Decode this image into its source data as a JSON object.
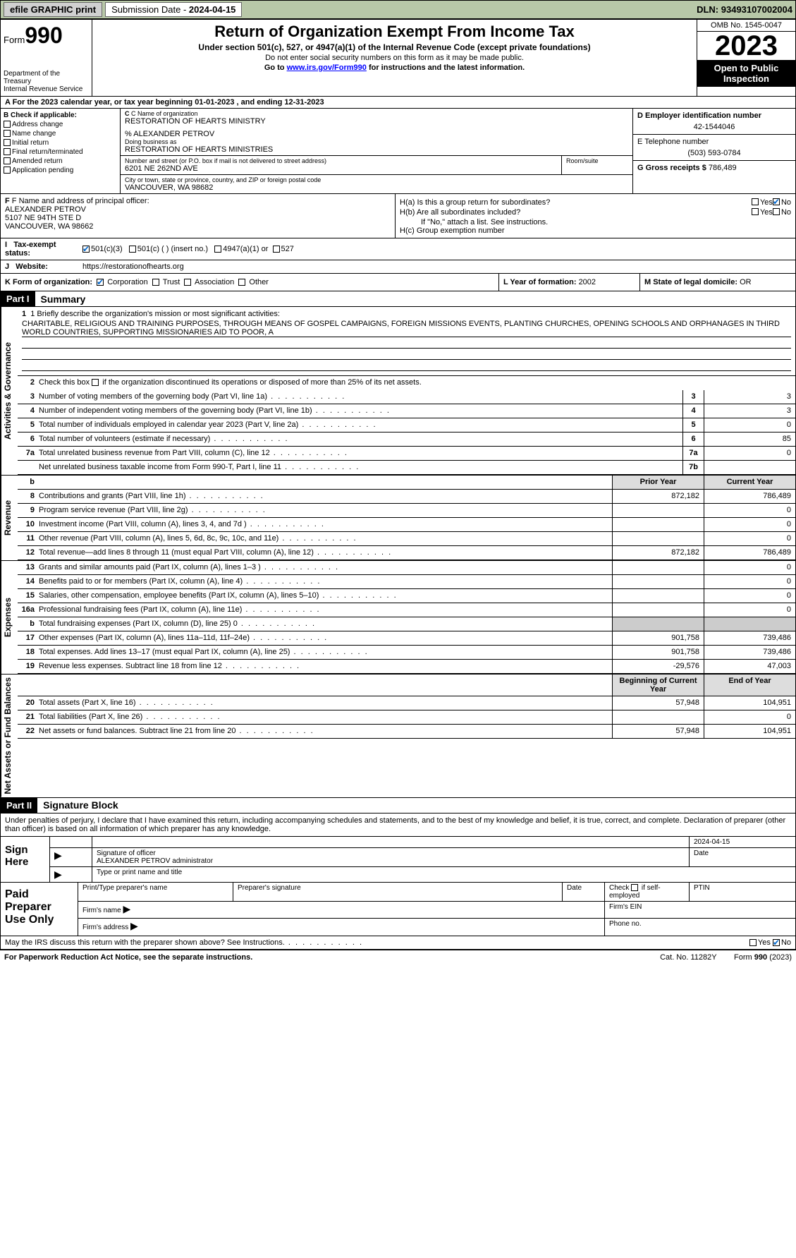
{
  "topbar": {
    "efile": "efile GRAPHIC print",
    "submission_label": "Submission Date - ",
    "submission_date": "2024-04-15",
    "dln_label": "DLN: ",
    "dln": "93493107002004"
  },
  "header": {
    "form_prefix": "Form",
    "form_number": "990",
    "dept": "Department of the Treasury\nInternal Revenue Service",
    "title": "Return of Organization Exempt From Income Tax",
    "sub1": "Under section 501(c), 527, or 4947(a)(1) of the Internal Revenue Code (except private foundations)",
    "sub2": "Do not enter social security numbers on this form as it may be made public.",
    "sub3_pre": "Go to ",
    "sub3_link": "www.irs.gov/Form990",
    "sub3_post": " for instructions and the latest information.",
    "omb": "OMB No. 1545-0047",
    "year": "2023",
    "open": "Open to Public Inspection"
  },
  "row_a": "A For the 2023 calendar year, or tax year beginning 01-01-2023   , and ending 12-31-2023",
  "col_b": {
    "title": "B Check if applicable:",
    "opts": [
      "Address change",
      "Name change",
      "Initial return",
      "Final return/terminated",
      "Amended return",
      "Application pending"
    ]
  },
  "col_c": {
    "name_lbl": "C Name of organization",
    "name": "RESTORATION OF HEARTS MINISTRY",
    "care_of": "% ALEXANDER PETROV",
    "dba_lbl": "Doing business as",
    "dba": "RESTORATION OF HEARTS MINISTRIES",
    "street_lbl": "Number and street (or P.O. box if mail is not delivered to street address)",
    "street": "6201 NE 262ND AVE",
    "suite_lbl": "Room/suite",
    "city_lbl": "City or town, state or province, country, and ZIP or foreign postal code",
    "city": "VANCOUVER, WA  98682"
  },
  "col_d": {
    "lbl": "D Employer identification number",
    "val": "42-1544046"
  },
  "col_e": {
    "lbl": "E Telephone number",
    "val": "(503) 593-0784"
  },
  "col_g": {
    "lbl": "G Gross receipts $ ",
    "val": "786,489"
  },
  "col_f": {
    "lbl": "F Name and address of principal officer:",
    "name": "ALEXANDER PETROV",
    "addr1": "5107 NE 94TH STE D",
    "addr2": "VANCOUVER, WA  98662"
  },
  "col_h": {
    "ha": "H(a)  Is this a group return for subordinates?",
    "hb": "H(b)  Are all subordinates included?",
    "hb2": "If \"No,\" attach a list. See instructions.",
    "hc": "H(c)  Group exemption number ",
    "yes": "Yes",
    "no": "No"
  },
  "row_i": {
    "lbl": "Tax-exempt status:",
    "o1": "501(c)(3)",
    "o2": "501(c) (  ) (insert no.)",
    "o3": "4947(a)(1) or",
    "o4": "527"
  },
  "row_j": {
    "lbl": "Website:",
    "val": "https://restorationofhearts.org"
  },
  "row_k": {
    "lbl": "K Form of organization:",
    "o1": "Corporation",
    "o2": "Trust",
    "o3": "Association",
    "o4": "Other"
  },
  "row_l": {
    "lbl": "L Year of formation: ",
    "val": "2002"
  },
  "row_m": {
    "lbl": "M State of legal domicile: ",
    "val": "OR"
  },
  "part1": {
    "hdr": "Part I",
    "title": "Summary"
  },
  "mission": {
    "lbl": "1  Briefly describe the organization's mission or most significant activities:",
    "txt": "CHARITABLE, RELIGIOUS AND TRAINING PURPOSES, THROUGH MEANS OF GOSPEL CAMPAIGNS, FOREIGN MISSIONS EVENTS, PLANTING CHURCHES, OPENING SCHOOLS AND ORPHANAGES IN THIRD WORLD COUNTRIES, SUPPORTING MISSIONARIES AID TO POOR, A"
  },
  "line2": "Check this box       if the organization discontinued its operations or disposed of more than 25% of its net assets.",
  "gov_lines": [
    {
      "n": "3",
      "t": "Number of voting members of the governing body (Part VI, line 1a)",
      "box": "3",
      "v": "3"
    },
    {
      "n": "4",
      "t": "Number of independent voting members of the governing body (Part VI, line 1b)",
      "box": "4",
      "v": "3"
    },
    {
      "n": "5",
      "t": "Total number of individuals employed in calendar year 2023 (Part V, line 2a)",
      "box": "5",
      "v": "0"
    },
    {
      "n": "6",
      "t": "Total number of volunteers (estimate if necessary)",
      "box": "6",
      "v": "85"
    },
    {
      "n": "7a",
      "t": "Total unrelated business revenue from Part VIII, column (C), line 12",
      "box": "7a",
      "v": "0"
    },
    {
      "n": "",
      "t": "Net unrelated business taxable income from Form 990-T, Part I, line 11",
      "box": "7b",
      "v": ""
    }
  ],
  "rev_hdr": {
    "b": "b",
    "py": "Prior Year",
    "cy": "Current Year"
  },
  "rev_lines": [
    {
      "n": "8",
      "t": "Contributions and grants (Part VIII, line 1h)",
      "py": "872,182",
      "cy": "786,489"
    },
    {
      "n": "9",
      "t": "Program service revenue (Part VIII, line 2g)",
      "py": "",
      "cy": "0"
    },
    {
      "n": "10",
      "t": "Investment income (Part VIII, column (A), lines 3, 4, and 7d )",
      "py": "",
      "cy": "0"
    },
    {
      "n": "11",
      "t": "Other revenue (Part VIII, column (A), lines 5, 6d, 8c, 9c, 10c, and 11e)",
      "py": "",
      "cy": "0"
    },
    {
      "n": "12",
      "t": "Total revenue—add lines 8 through 11 (must equal Part VIII, column (A), line 12)",
      "py": "872,182",
      "cy": "786,489"
    }
  ],
  "exp_lines": [
    {
      "n": "13",
      "t": "Grants and similar amounts paid (Part IX, column (A), lines 1–3 )",
      "py": "",
      "cy": "0"
    },
    {
      "n": "14",
      "t": "Benefits paid to or for members (Part IX, column (A), line 4)",
      "py": "",
      "cy": "0"
    },
    {
      "n": "15",
      "t": "Salaries, other compensation, employee benefits (Part IX, column (A), lines 5–10)",
      "py": "",
      "cy": "0"
    },
    {
      "n": "16a",
      "t": "Professional fundraising fees (Part IX, column (A), line 11e)",
      "py": "",
      "cy": "0"
    },
    {
      "n": "b",
      "t": "Total fundraising expenses (Part IX, column (D), line 25) 0",
      "py": "shade",
      "cy": "shade"
    },
    {
      "n": "17",
      "t": "Other expenses (Part IX, column (A), lines 11a–11d, 11f–24e)",
      "py": "901,758",
      "cy": "739,486"
    },
    {
      "n": "18",
      "t": "Total expenses. Add lines 13–17 (must equal Part IX, column (A), line 25)",
      "py": "901,758",
      "cy": "739,486"
    },
    {
      "n": "19",
      "t": "Revenue less expenses. Subtract line 18 from line 12",
      "py": "-29,576",
      "cy": "47,003"
    }
  ],
  "net_hdr": {
    "py": "Beginning of Current Year",
    "cy": "End of Year"
  },
  "net_lines": [
    {
      "n": "20",
      "t": "Total assets (Part X, line 16)",
      "py": "57,948",
      "cy": "104,951"
    },
    {
      "n": "21",
      "t": "Total liabilities (Part X, line 26)",
      "py": "",
      "cy": "0"
    },
    {
      "n": "22",
      "t": "Net assets or fund balances. Subtract line 21 from line 20",
      "py": "57,948",
      "cy": "104,951"
    }
  ],
  "vtabs": {
    "gov": "Activities & Governance",
    "rev": "Revenue",
    "exp": "Expenses",
    "net": "Net Assets or Fund Balances"
  },
  "part2": {
    "hdr": "Part II",
    "title": "Signature Block"
  },
  "sig_intro": "Under penalties of perjury, I declare that I have examined this return, including accompanying schedules and statements, and to the best of my knowledge and belief, it is true, correct, and complete. Declaration of preparer (other than officer) is based on all information of which preparer has any knowledge.",
  "sign": {
    "here": "Sign Here",
    "date": "2024-04-15",
    "sig_lbl": "Signature of officer",
    "date_lbl": "Date",
    "name": "ALEXANDER PETROV administrator",
    "type_lbl": "Type or print name and title"
  },
  "prep": {
    "title": "Paid Preparer Use Only",
    "h1": "Print/Type preparer's name",
    "h2": "Preparer's signature",
    "h3": "Date",
    "h4": "Check        if self-employed",
    "h5": "PTIN",
    "f1": "Firm's name",
    "f2": "Firm's EIN",
    "f3": "Firm's address",
    "f4": "Phone no."
  },
  "discuss": "May the IRS discuss this return with the preparer shown above? See Instructions.",
  "footer": {
    "left": "For Paperwork Reduction Act Notice, see the separate instructions.",
    "mid": "Cat. No. 11282Y",
    "right": "Form 990 (2023)"
  }
}
